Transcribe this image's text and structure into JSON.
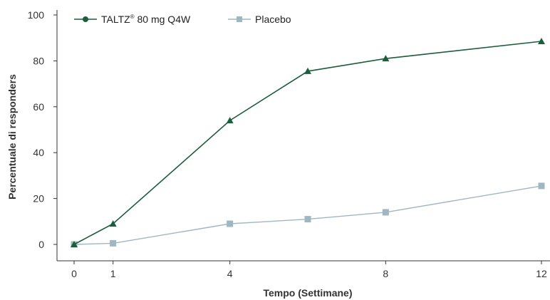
{
  "chart_data": {
    "type": "line",
    "title": "",
    "xlabel": "Tempo (Settimane)",
    "ylabel": "Percentuale di responders",
    "xlim": [
      0,
      12
    ],
    "ylim": [
      0,
      100
    ],
    "x_ticks": [
      0,
      1,
      4,
      8,
      12
    ],
    "x_tick_labels": [
      "0",
      "1",
      "4",
      "8",
      "12"
    ],
    "y_ticks": [
      0,
      20,
      40,
      60,
      80,
      100
    ],
    "y_tick_labels": [
      "0",
      "20",
      "40",
      "60",
      "80",
      "100"
    ],
    "grid": false,
    "legend_position": "top-left",
    "series": [
      {
        "name": "TALTZ",
        "name_superscript": "®",
        "name_suffix": " 80 mg Q4W",
        "marker": "triangle",
        "color": "#1b5e3b",
        "x": [
          0,
          1,
          4,
          6,
          8,
          12
        ],
        "values": [
          0,
          9,
          54,
          75.5,
          81,
          88.5
        ]
      },
      {
        "name": "Placebo",
        "marker": "square",
        "color": "#9fb7c1",
        "x": [
          0,
          1,
          4,
          6,
          8,
          12
        ],
        "values": [
          0,
          0.5,
          9,
          11,
          14,
          25.5
        ]
      }
    ]
  }
}
